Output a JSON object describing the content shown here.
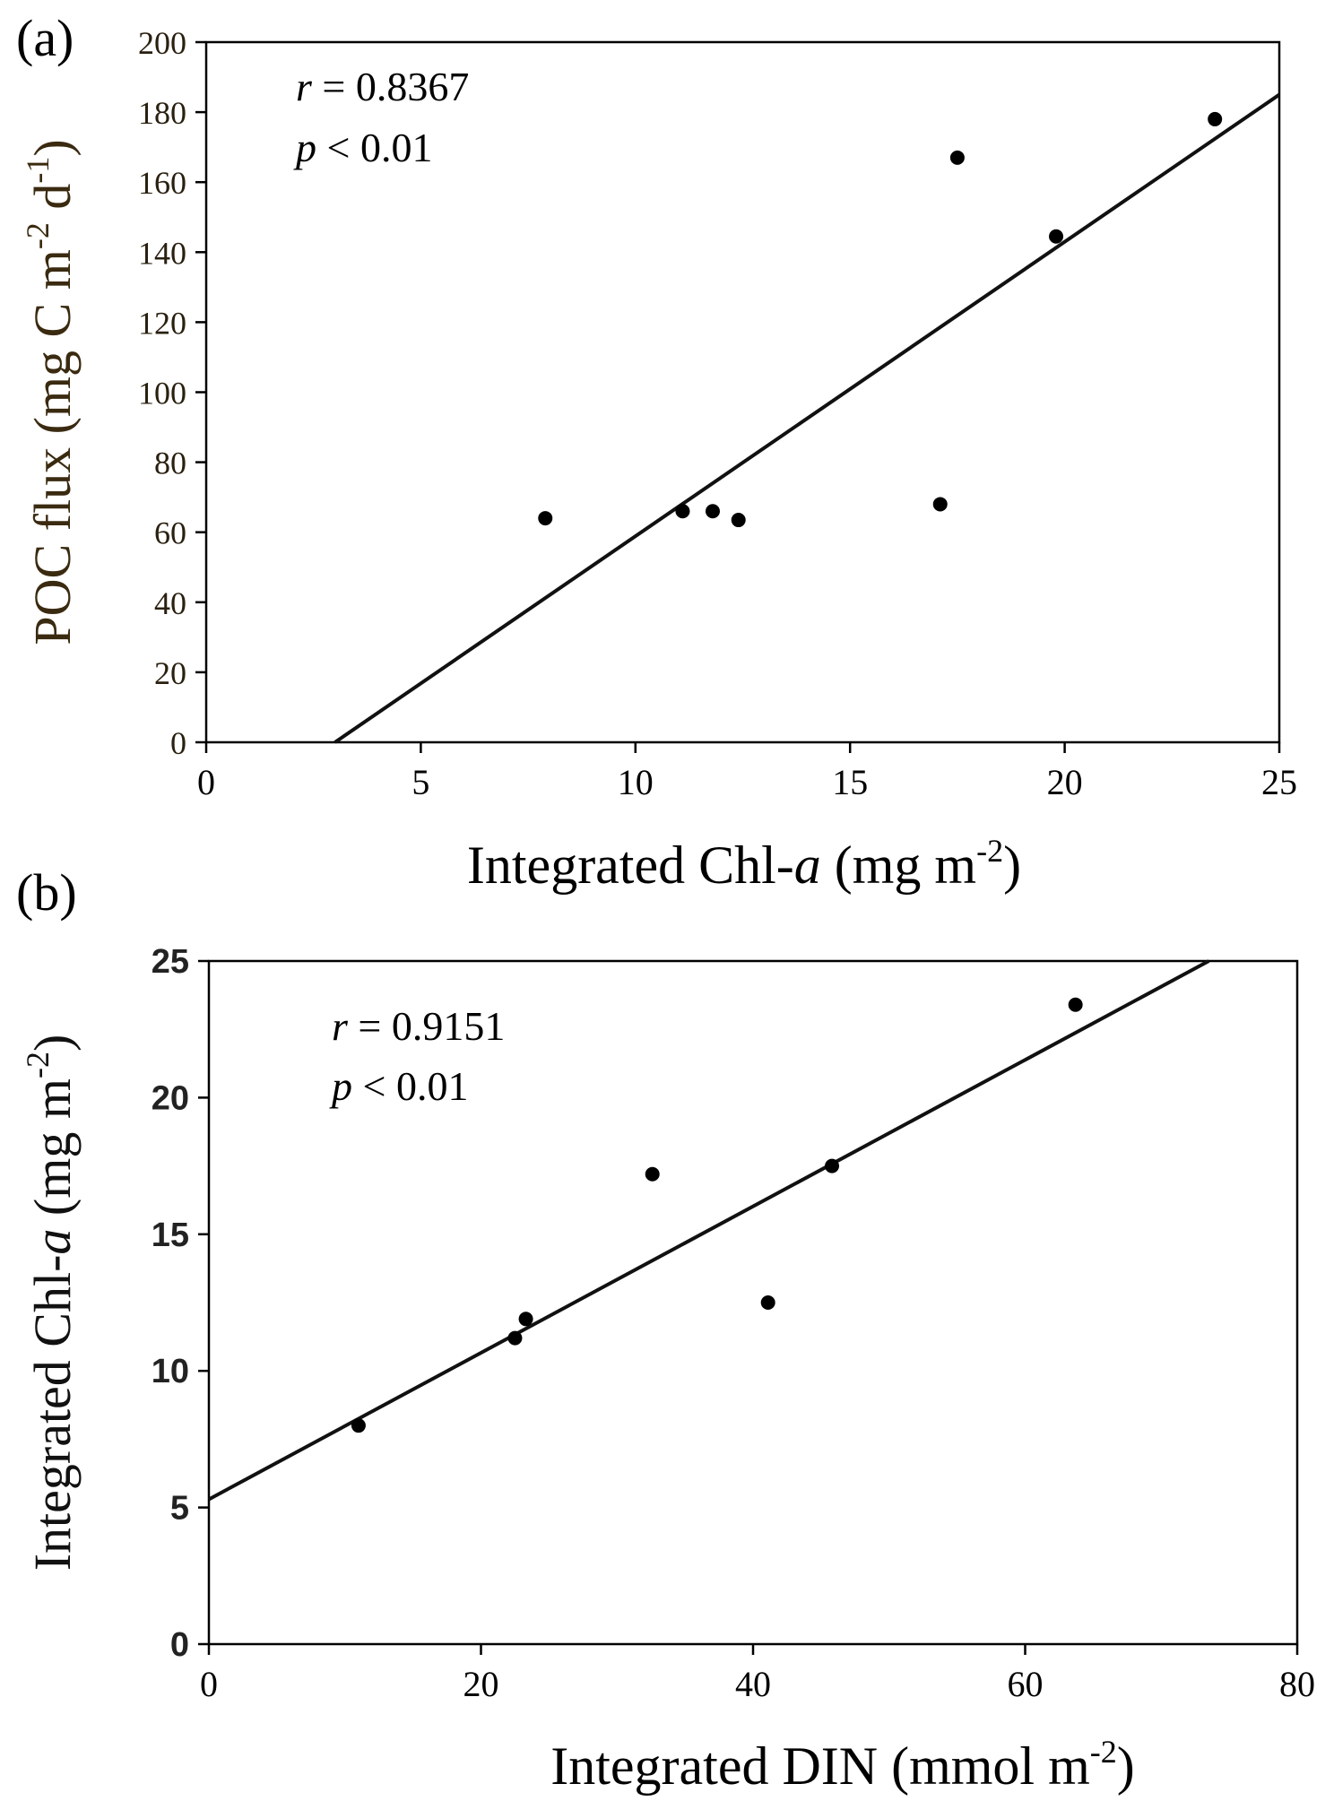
{
  "chart_data": [
    {
      "type": "scatter",
      "panel_label": "(a)",
      "xlabel": "Integrated Chl-a (mg m-2)",
      "xlabel_parts": {
        "main": "Integrated Chl-",
        "italic": "a",
        "unit": " (mg m",
        "sup": "-2",
        "close": ")"
      },
      "ylabel": "POC flux (mg C m-2 d-1)",
      "ylabel_parts": {
        "main": "POC flux (mg C m",
        "sup1": "-2",
        "mid": " d",
        "sup2": "-1",
        "close": ")"
      },
      "xlim": [
        0,
        25
      ],
      "ylim": [
        0,
        200
      ],
      "xticks": [
        "0",
        "5",
        "10",
        "15",
        "20",
        "25"
      ],
      "yticks": [
        "0",
        "20",
        "40",
        "60",
        "80",
        "100",
        "120",
        "140",
        "160",
        "180",
        "200"
      ],
      "points": [
        [
          7.9,
          64
        ],
        [
          11.1,
          66
        ],
        [
          11.8,
          66
        ],
        [
          12.4,
          63.5
        ],
        [
          17.1,
          68
        ],
        [
          17.5,
          167
        ],
        [
          19.8,
          144.5
        ],
        [
          23.5,
          178
        ]
      ],
      "regression": [
        [
          3.0,
          0
        ],
        [
          25,
          185
        ]
      ],
      "stats": {
        "r_label": "r",
        "r_value": " = 0.8367",
        "p_label": "p",
        "p_value": " < 0.01"
      },
      "grid": false
    },
    {
      "type": "scatter",
      "panel_label": "(b)",
      "xlabel": "Integrated DIN (mmol m-2)",
      "xlabel_parts": {
        "main": "Integrated DIN (mmol m",
        "sup": "-2",
        "close": ")"
      },
      "ylabel": "Integrated Chl-a (mg m-2)",
      "ylabel_parts": {
        "main": "Integrated Chl-",
        "italic": "a",
        "unit": " (mg m",
        "sup": "-2",
        "close": ")"
      },
      "xlim": [
        0,
        80
      ],
      "ylim": [
        0,
        25
      ],
      "xticks": [
        "0",
        "20",
        "40",
        "60",
        "80"
      ],
      "yticks": [
        "0",
        "5",
        "10",
        "15",
        "20",
        "25"
      ],
      "points": [
        [
          11,
          8
        ],
        [
          22.5,
          11.2
        ],
        [
          23.3,
          11.9
        ],
        [
          32.6,
          17.2
        ],
        [
          41.1,
          12.5
        ],
        [
          45.8,
          17.5
        ],
        [
          63.7,
          23.4
        ]
      ],
      "regression": [
        [
          0,
          5.3
        ],
        [
          73.5,
          25
        ]
      ],
      "stats": {
        "r_label": "r",
        "r_value": " = 0.9151",
        "p_label": "p",
        "p_value": " < 0.01"
      },
      "grid": false
    }
  ]
}
